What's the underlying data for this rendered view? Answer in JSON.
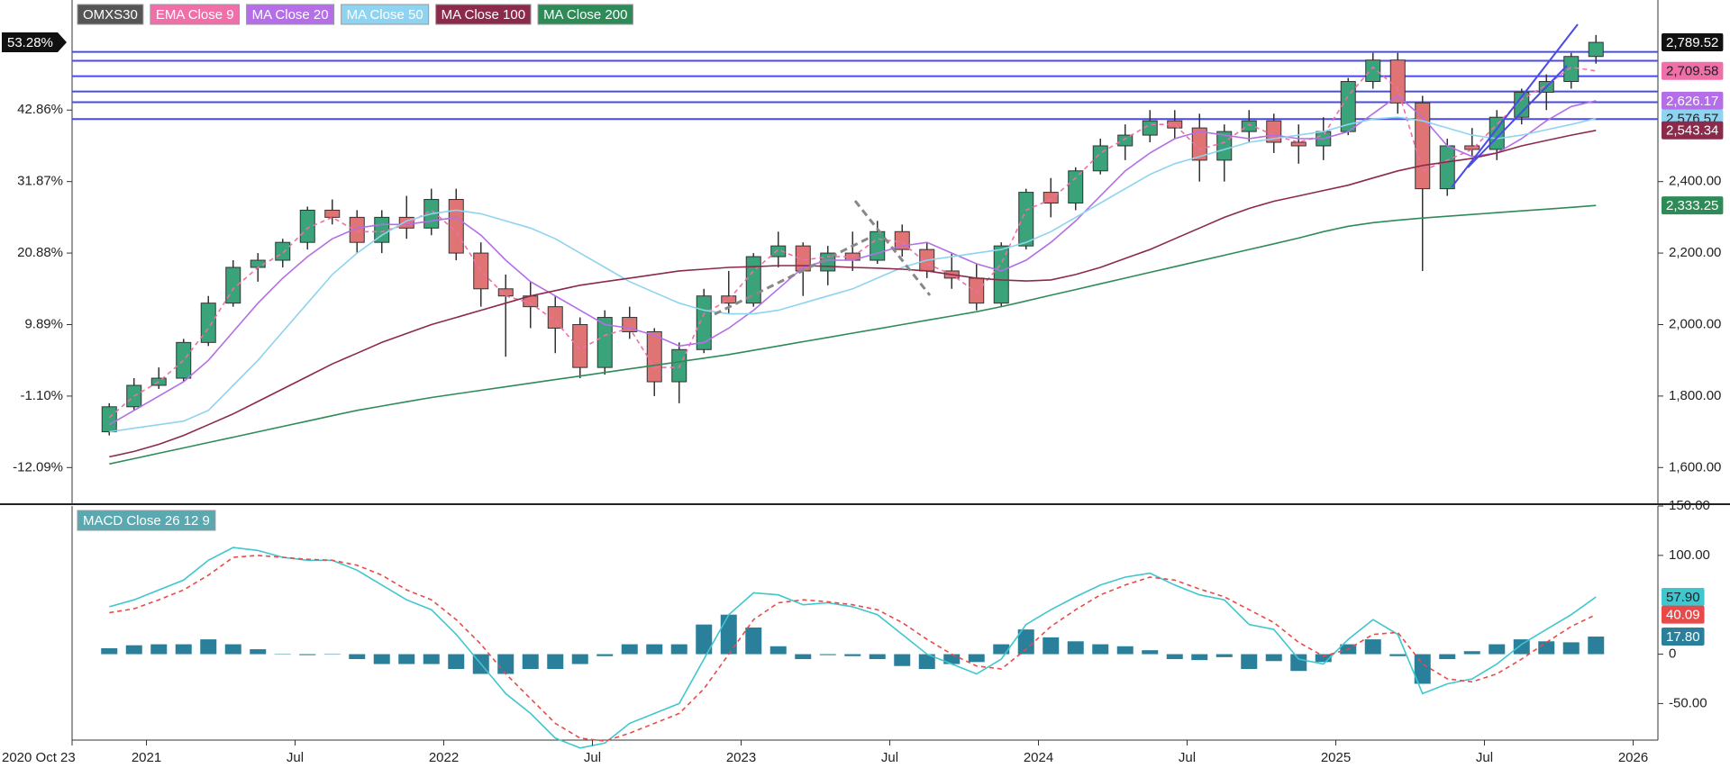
{
  "chart_data": [
    {
      "type": "candlestick",
      "x": [
        "2020-11",
        "2020-12",
        "2021-01",
        "2021-02",
        "2021-03",
        "2021-04",
        "2021-05",
        "2021-06",
        "2021-07",
        "2021-08",
        "2021-09",
        "2021-10",
        "2021-11",
        "2021-12",
        "2022-01",
        "2022-02",
        "2022-03",
        "2022-04",
        "2022-05",
        "2022-06",
        "2022-07",
        "2022-08",
        "2022-09",
        "2022-10",
        "2022-11",
        "2022-12",
        "2023-01",
        "2023-02",
        "2023-03",
        "2023-04",
        "2023-05",
        "2023-06",
        "2023-07",
        "2023-08",
        "2023-09",
        "2023-10",
        "2023-11",
        "2023-12",
        "2024-01",
        "2024-02",
        "2024-03",
        "2024-04",
        "2024-05",
        "2024-06",
        "2024-07",
        "2024-08",
        "2024-09",
        "2024-10",
        "2024-11",
        "2024-12",
        "2025-01",
        "2025-02",
        "2025-03",
        "2025-04",
        "2025-05",
        "2025-06",
        "2025-07",
        "2025-08",
        "2025-09",
        "2025-10",
        "2025-11"
      ],
      "xlim": [
        "2020-10",
        "2026-02"
      ],
      "ylim": [
        1500,
        2908
      ],
      "yticks": [
        {
          "value": 1600,
          "label": "1,600.00"
        },
        {
          "value": 1800,
          "label": "1,800.00"
        },
        {
          "value": 2000,
          "label": "2,000.00"
        },
        {
          "value": 2200,
          "label": "2,200.00"
        },
        {
          "value": 2400,
          "label": "2,400.00"
        }
      ],
      "y2lim": [
        -17.58,
        59.78
      ],
      "y2ticks": [
        {
          "value": -12.09,
          "label": "-12.09%"
        },
        {
          "value": -1.1,
          "label": "-1.10%"
        },
        {
          "value": 9.89,
          "label": "9.89%"
        },
        {
          "value": 20.88,
          "label": "20.88%"
        },
        {
          "value": 31.87,
          "label": "31.87%"
        },
        {
          "value": 42.86,
          "label": "42.86%"
        }
      ],
      "y2_current": {
        "value": 53.28,
        "label": "53.28%"
      },
      "hlines": [
        2763,
        2738,
        2695,
        2652,
        2622,
        2575
      ],
      "hline_color": "#4a4ae6",
      "series": [
        {
          "name": "OMXS30",
          "type": "candlestick",
          "color": "#555555",
          "up_color": "#3aa37a",
          "down_color": "#e07474",
          "open": [
            1700,
            1770,
            1830,
            1850,
            1950,
            2060,
            2160,
            2180,
            2230,
            2320,
            2300,
            2230,
            2300,
            2270,
            2350,
            2200,
            2100,
            2080,
            2050,
            2000,
            1880,
            2020,
            1980,
            1840,
            1930,
            2080,
            2060,
            2190,
            2220,
            2150,
            2200,
            2180,
            2260,
            2210,
            2150,
            2130,
            2060,
            2220,
            2370,
            2340,
            2430,
            2500,
            2530,
            2570,
            2550,
            2460,
            2540,
            2570,
            2510,
            2500,
            2540,
            2680,
            2740,
            2620,
            2380,
            2500,
            2490,
            2580,
            2650,
            2680,
            2750
          ],
          "high": [
            1780,
            1850,
            1880,
            1960,
            2080,
            2180,
            2200,
            2240,
            2330,
            2350,
            2320,
            2320,
            2360,
            2380,
            2380,
            2230,
            2140,
            2120,
            2080,
            2020,
            2040,
            2050,
            1990,
            1950,
            2100,
            2150,
            2200,
            2260,
            2230,
            2220,
            2260,
            2290,
            2280,
            2230,
            2200,
            2170,
            2230,
            2380,
            2410,
            2440,
            2520,
            2560,
            2600,
            2600,
            2590,
            2560,
            2600,
            2590,
            2560,
            2580,
            2690,
            2760,
            2760,
            2640,
            2520,
            2550,
            2600,
            2660,
            2700,
            2760,
            2810
          ],
          "low": [
            1690,
            1760,
            1820,
            1840,
            1940,
            2050,
            2120,
            2160,
            2210,
            2280,
            2200,
            2200,
            2240,
            2250,
            2180,
            2050,
            1910,
            1990,
            1920,
            1850,
            1860,
            1960,
            1800,
            1780,
            1920,
            2030,
            2050,
            2160,
            2080,
            2110,
            2150,
            2170,
            2190,
            2130,
            2100,
            2040,
            2050,
            2210,
            2300,
            2320,
            2420,
            2460,
            2510,
            2520,
            2400,
            2400,
            2510,
            2480,
            2450,
            2460,
            2530,
            2660,
            2590,
            2150,
            2360,
            2470,
            2460,
            2560,
            2600,
            2660,
            2730
          ],
          "close": [
            1770,
            1830,
            1850,
            1950,
            2060,
            2160,
            2180,
            2230,
            2320,
            2300,
            2230,
            2300,
            2270,
            2350,
            2200,
            2100,
            2080,
            2050,
            1990,
            1880,
            2020,
            1980,
            1840,
            1930,
            2080,
            2060,
            2190,
            2220,
            2150,
            2200,
            2180,
            2260,
            2210,
            2150,
            2130,
            2060,
            2220,
            2370,
            2340,
            2430,
            2500,
            2530,
            2570,
            2550,
            2460,
            2540,
            2570,
            2510,
            2500,
            2540,
            2680,
            2740,
            2620,
            2380,
            2500,
            2490,
            2580,
            2650,
            2680,
            2750,
            2789.52
          ],
          "last_label": "2,789.52"
        },
        {
          "name": "EMA Close 9",
          "type": "line",
          "color": "#f06fa8",
          "dash": true,
          "last_label": "2,709.58",
          "values": [
            1740,
            1800,
            1840,
            1900,
            1990,
            2100,
            2160,
            2200,
            2270,
            2300,
            2260,
            2260,
            2280,
            2320,
            2260,
            2150,
            2080,
            2060,
            2010,
            1930,
            1970,
            1990,
            1880,
            1880,
            2030,
            2070,
            2150,
            2210,
            2180,
            2190,
            2190,
            2240,
            2230,
            2170,
            2140,
            2090,
            2170,
            2320,
            2350,
            2410,
            2480,
            2520,
            2560,
            2560,
            2490,
            2510,
            2560,
            2530,
            2510,
            2530,
            2640,
            2720,
            2660,
            2430,
            2460,
            2490,
            2560,
            2630,
            2670,
            2720,
            2709.58
          ]
        },
        {
          "name": "MA Close 20",
          "type": "line",
          "color": "#b46ee8",
          "last_label": "2,626.17",
          "values": [
            1720,
            1760,
            1800,
            1840,
            1900,
            1980,
            2060,
            2130,
            2190,
            2240,
            2270,
            2280,
            2280,
            2290,
            2300,
            2250,
            2180,
            2120,
            2080,
            2040,
            2000,
            1990,
            1970,
            1940,
            1950,
            1990,
            2040,
            2100,
            2160,
            2180,
            2180,
            2200,
            2220,
            2230,
            2200,
            2170,
            2150,
            2180,
            2230,
            2290,
            2360,
            2430,
            2480,
            2520,
            2540,
            2530,
            2520,
            2530,
            2520,
            2520,
            2540,
            2590,
            2640,
            2580,
            2500,
            2470,
            2480,
            2520,
            2570,
            2610,
            2626.17
          ]
        },
        {
          "name": "MA Close 50",
          "type": "line",
          "color": "#8ed3ef",
          "last_label": "2,576.57",
          "values": [
            1700,
            1710,
            1720,
            1730,
            1760,
            1830,
            1900,
            1980,
            2060,
            2140,
            2200,
            2250,
            2290,
            2310,
            2320,
            2310,
            2290,
            2270,
            2240,
            2200,
            2160,
            2120,
            2090,
            2060,
            2040,
            2030,
            2030,
            2040,
            2060,
            2080,
            2100,
            2130,
            2160,
            2180,
            2190,
            2200,
            2210,
            2230,
            2260,
            2300,
            2340,
            2380,
            2420,
            2450,
            2470,
            2490,
            2510,
            2520,
            2530,
            2540,
            2560,
            2575,
            2580,
            2570,
            2550,
            2530,
            2520,
            2530,
            2545,
            2560,
            2576.57
          ]
        },
        {
          "name": "MA Close 100",
          "type": "line",
          "color": "#8b2a4a",
          "last_label": "2,543.34",
          "values": [
            1630,
            1645,
            1665,
            1690,
            1720,
            1750,
            1785,
            1820,
            1855,
            1890,
            1920,
            1950,
            1975,
            2000,
            2020,
            2040,
            2060,
            2080,
            2095,
            2110,
            2120,
            2130,
            2140,
            2150,
            2155,
            2160,
            2162,
            2165,
            2165,
            2163,
            2160,
            2158,
            2155,
            2150,
            2140,
            2130,
            2125,
            2122,
            2125,
            2140,
            2160,
            2185,
            2210,
            2240,
            2270,
            2300,
            2325,
            2345,
            2360,
            2375,
            2390,
            2410,
            2430,
            2445,
            2455,
            2465,
            2480,
            2500,
            2515,
            2530,
            2543.34
          ]
        },
        {
          "name": "MA Close 200",
          "type": "line",
          "color": "#2e8b57",
          "last_label": "2,333.25",
          "values": [
            1610,
            1625,
            1640,
            1655,
            1670,
            1685,
            1700,
            1715,
            1730,
            1745,
            1760,
            1772,
            1784,
            1796,
            1806,
            1816,
            1826,
            1836,
            1846,
            1856,
            1866,
            1876,
            1886,
            1896,
            1906,
            1916,
            1928,
            1940,
            1952,
            1964,
            1976,
            1988,
            2000,
            2012,
            2024,
            2036,
            2050,
            2066,
            2082,
            2098,
            2114,
            2130,
            2146,
            2162,
            2178,
            2194,
            2210,
            2226,
            2242,
            2260,
            2275,
            2285,
            2292,
            2298,
            2303,
            2308,
            2313,
            2318,
            2323,
            2328,
            2333.25
          ]
        }
      ]
    },
    {
      "type": "macd",
      "title": "MACD Close 26 12 9",
      "title_color": "#5aa8b0",
      "x": [
        "2020-11",
        "2020-12",
        "2021-01",
        "2021-02",
        "2021-03",
        "2021-04",
        "2021-05",
        "2021-06",
        "2021-07",
        "2021-08",
        "2021-09",
        "2021-10",
        "2021-11",
        "2021-12",
        "2022-01",
        "2022-02",
        "2022-03",
        "2022-04",
        "2022-05",
        "2022-06",
        "2022-07",
        "2022-08",
        "2022-09",
        "2022-10",
        "2022-11",
        "2022-12",
        "2023-01",
        "2023-02",
        "2023-03",
        "2023-04",
        "2023-05",
        "2023-06",
        "2023-07",
        "2023-08",
        "2023-09",
        "2023-10",
        "2023-11",
        "2023-12",
        "2024-01",
        "2024-02",
        "2024-03",
        "2024-04",
        "2024-05",
        "2024-06",
        "2024-07",
        "2024-08",
        "2024-09",
        "2024-10",
        "2024-11",
        "2024-12",
        "2025-01",
        "2025-02",
        "2025-03",
        "2025-04",
        "2025-05",
        "2025-06",
        "2025-07",
        "2025-08",
        "2025-09",
        "2025-10",
        "2025-11"
      ],
      "xlim": [
        "2020-10",
        "2026-02"
      ],
      "xticks": [
        {
          "value": "2020-10",
          "label": "2020 Oct 23"
        },
        {
          "value": "2021-01",
          "label": "2021"
        },
        {
          "value": "2021-07",
          "label": "Jul"
        },
        {
          "value": "2022-01",
          "label": "2022"
        },
        {
          "value": "2022-07",
          "label": "Jul"
        },
        {
          "value": "2023-01",
          "label": "2023"
        },
        {
          "value": "2023-07",
          "label": "Jul"
        },
        {
          "value": "2024-01",
          "label": "2024"
        },
        {
          "value": "2024-07",
          "label": "Jul"
        },
        {
          "value": "2025-01",
          "label": "2025"
        },
        {
          "value": "2025-07",
          "label": "Jul"
        },
        {
          "value": "2026-01",
          "label": "2026"
        }
      ],
      "ylim": [
        -87,
        150
      ],
      "yticks": [
        {
          "value": -50,
          "label": "-50.00"
        },
        0,
        {
          "value": 100,
          "label": "100.00"
        },
        {
          "value": 150,
          "label": "150.00"
        }
      ],
      "series": [
        {
          "type": "bar",
          "color": "#2a7f9a",
          "last_label": "17.80",
          "values": [
            6,
            9,
            10,
            10,
            15,
            10,
            5,
            0,
            -1,
            0,
            -5,
            -10,
            -10,
            -10,
            -15,
            -20,
            -20,
            -15,
            -15,
            -10,
            -2,
            10,
            10,
            10,
            30,
            40,
            27,
            8,
            -5,
            -1,
            -2,
            -5,
            -12,
            -15,
            -10,
            -8,
            10,
            25,
            17,
            13,
            10,
            8,
            4,
            -5,
            -6,
            -3,
            -15,
            -7,
            -17,
            -8,
            10,
            15,
            -2,
            -30,
            -5,
            3,
            10,
            15,
            13,
            12,
            17.8
          ]
        },
        {
          "type": "line",
          "color": "#3fc6cf",
          "last_label": "57.90",
          "values": [
            48,
            55,
            65,
            75,
            95,
            108,
            105,
            98,
            95,
            95,
            85,
            70,
            55,
            45,
            20,
            -10,
            -40,
            -60,
            -85,
            -95,
            -90,
            -70,
            -60,
            -50,
            -5,
            40,
            62,
            60,
            50,
            52,
            48,
            40,
            20,
            0,
            -10,
            -20,
            -5,
            30,
            45,
            58,
            70,
            78,
            82,
            70,
            60,
            55,
            30,
            25,
            -5,
            -10,
            15,
            35,
            20,
            -40,
            -30,
            -25,
            -10,
            10,
            25,
            40,
            57.9
          ]
        },
        {
          "type": "line",
          "color": "#e84a4a",
          "dash": true,
          "last_label": "40.09",
          "values": [
            42,
            46,
            55,
            65,
            80,
            98,
            100,
            98,
            96,
            95,
            90,
            80,
            65,
            55,
            35,
            10,
            -20,
            -45,
            -70,
            -85,
            -88,
            -80,
            -70,
            -60,
            -35,
            0,
            35,
            52,
            55,
            53,
            50,
            45,
            32,
            15,
            0,
            -12,
            -15,
            5,
            28,
            45,
            60,
            70,
            78,
            75,
            66,
            58,
            45,
            32,
            12,
            -2,
            5,
            20,
            22,
            -10,
            -25,
            -28,
            -20,
            -5,
            12,
            28,
            40.09
          ]
        }
      ]
    }
  ]
}
